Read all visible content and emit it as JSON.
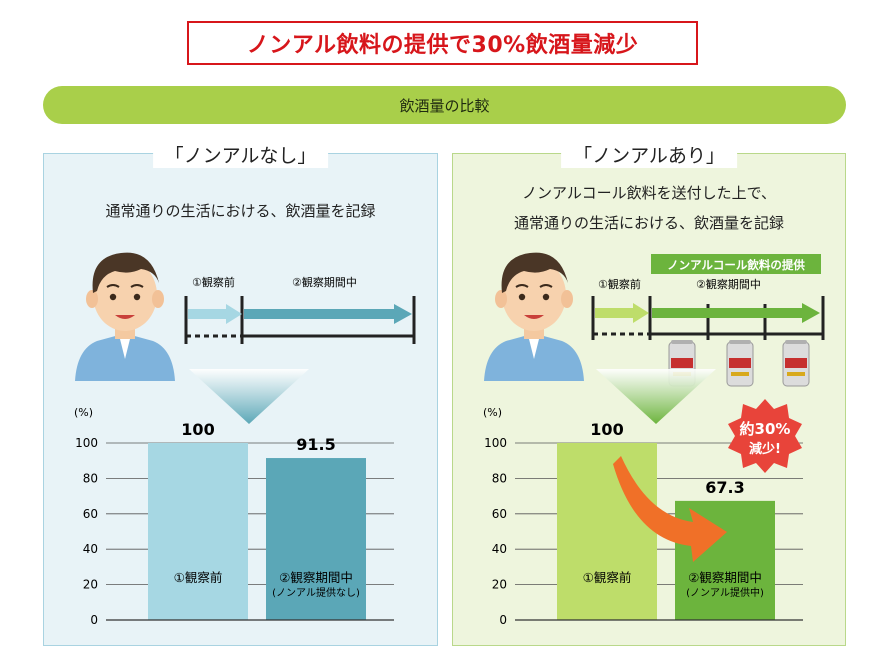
{
  "title": "ノンアル飲料の提供で30%飲酒量減少",
  "banner": "飲酒量の比較",
  "left": {
    "heading": "「ノンアルなし」",
    "desc": [
      "通常通りの生活における、飲酒量を記録"
    ],
    "timeline": {
      "before": "①観察前",
      "during": "②観察期間中"
    }
  },
  "right": {
    "heading": "「ノンアルあり」",
    "desc": [
      "ノンアルコール飲料を送付した上で、",
      "通常通りの生活における、飲酒量を記録"
    ],
    "timeline": {
      "before": "①観察前",
      "during": "②観察期間中"
    },
    "provide_label": "ノンアルコール飲料の提供",
    "badge": {
      "line1": "約30%",
      "line2": "減少!"
    }
  },
  "chart_data": [
    {
      "type": "bar",
      "unit_label": "(%)",
      "ylim": [
        0,
        100
      ],
      "yticks": [
        0,
        20,
        40,
        60,
        80,
        100
      ],
      "categories": [
        "①観察前",
        "②観察期間中"
      ],
      "category_sublabels": [
        "",
        "(ノンアル提供なし)"
      ],
      "values": [
        100,
        91.5
      ],
      "value_labels": [
        "100",
        "91.5"
      ],
      "colors": [
        "#a6d7e3",
        "#5ba7b7"
      ]
    },
    {
      "type": "bar",
      "unit_label": "(%)",
      "ylim": [
        0,
        100
      ],
      "yticks": [
        0,
        20,
        40,
        60,
        80,
        100
      ],
      "categories": [
        "①観察前",
        "②観察期間中"
      ],
      "category_sublabels": [
        "",
        "(ノンアル提供中)"
      ],
      "values": [
        100,
        67.3
      ],
      "value_labels": [
        "100",
        "67.3"
      ],
      "colors": [
        "#bedd6a",
        "#6cb43d"
      ]
    }
  ],
  "colors": {
    "title_red": "#d7161b",
    "banner_green": "#a9cf4a",
    "left_arrow": "#5ba7b7",
    "right_arrow": "#6cb43d",
    "orange_arrow": "#f07028",
    "badge_red": "#e8443a"
  }
}
